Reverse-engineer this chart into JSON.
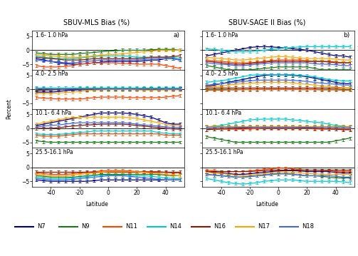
{
  "title_left": "SBUV-MLS Bias (%)",
  "title_right": "SBUV-SAGE II Bias (%)",
  "label_a": "a)",
  "label_b": "b)",
  "ylabel": "Percent",
  "xlabel": "Latitude",
  "latitudes": [
    -50,
    -45,
    -40,
    -35,
    -30,
    -25,
    -20,
    -15,
    -10,
    -5,
    0,
    5,
    10,
    15,
    20,
    25,
    30,
    35,
    40,
    45,
    50
  ],
  "layer_labels": [
    "1.6- 1.0 hPa",
    "4.0- 2.5 hPa",
    "10.1- 6.4 hPa",
    "25.5-16.1 hPa"
  ],
  "instruments": [
    "N7",
    "N9",
    "N11",
    "N14",
    "N16",
    "N17",
    "N18"
  ],
  "colors": [
    "#00008B",
    "#1a7a1a",
    "#FF4500",
    "#00CCCC",
    "#8B1a00",
    "#FFA500",
    "#4169E1"
  ],
  "ylim": [
    -7,
    7
  ],
  "yticks": [
    -5,
    0,
    5
  ],
  "xticks": [
    -40,
    -20,
    0,
    20,
    40
  ],
  "mls_data": {
    "1.6-1.0": {
      "N7": [
        -3.0,
        -3.5,
        -4.0,
        -4.5,
        -4.8,
        -5.0,
        -5.0,
        -4.8,
        -4.5,
        -4.3,
        -4.0,
        -4.0,
        -4.0,
        -4.0,
        -4.0,
        -3.8,
        -3.5,
        -3.5,
        -3.0,
        -3.0,
        -3.5
      ],
      "N9": [
        -1.0,
        -1.2,
        -1.5,
        -1.5,
        -1.5,
        -1.5,
        -1.2,
        -1.0,
        -0.8,
        -0.5,
        -0.3,
        -0.2,
        -0.0,
        0.0,
        0.0,
        0.0,
        0.2,
        0.3,
        0.3,
        0.3,
        0.0
      ],
      "N11": [
        -5.5,
        -6.0,
        -6.0,
        -6.0,
        -5.8,
        -5.5,
        -5.0,
        -4.8,
        -4.5,
        -4.5,
        -4.5,
        -4.5,
        -4.8,
        -4.8,
        -5.0,
        -5.0,
        -5.0,
        -5.0,
        -5.5,
        -6.0,
        -6.5
      ],
      "N14": [
        -2.0,
        -2.5,
        -2.8,
        -3.0,
        -3.0,
        -3.0,
        -2.8,
        -2.5,
        -2.3,
        -2.0,
        -2.0,
        -2.0,
        -2.0,
        -2.2,
        -2.5,
        -2.5,
        -2.5,
        -2.5,
        -2.5,
        -2.5,
        -3.0
      ],
      "N16": [
        -2.5,
        -2.8,
        -3.0,
        -3.2,
        -3.5,
        -3.5,
        -3.5,
        -3.3,
        -3.0,
        -3.0,
        -3.0,
        -3.0,
        -3.0,
        -3.0,
        -3.0,
        -2.8,
        -2.5,
        -2.5,
        -2.5,
        -2.3,
        -2.0
      ],
      "N17": [
        -1.5,
        -1.8,
        -2.0,
        -2.2,
        -2.5,
        -2.5,
        -2.5,
        -2.3,
        -2.0,
        -1.8,
        -1.5,
        -1.5,
        -1.3,
        -1.0,
        -0.8,
        -0.5,
        -0.3,
        0.0,
        0.0,
        0.0,
        0.0
      ],
      "N18": [
        -3.5,
        -3.8,
        -4.0,
        -4.2,
        -4.5,
        -4.5,
        -4.3,
        -4.0,
        -3.8,
        -3.5,
        -3.5,
        -3.5,
        -3.5,
        -3.5,
        -3.5,
        -3.3,
        -3.0,
        -3.0,
        -3.0,
        -3.0,
        -3.5
      ]
    },
    "4.0-2.5": {
      "N7": [
        -1.0,
        -1.0,
        -1.0,
        -0.8,
        -0.5,
        -0.3,
        -0.2,
        -0.1,
        0.0,
        0.1,
        0.1,
        0.1,
        0.1,
        0.1,
        0.1,
        0.2,
        0.2,
        0.2,
        0.3,
        0.3,
        0.3
      ],
      "N9": [
        -0.5,
        -0.3,
        -0.2,
        -0.1,
        0.0,
        0.1,
        0.2,
        0.3,
        0.3,
        0.3,
        0.3,
        0.3,
        0.3,
        0.3,
        0.2,
        0.2,
        0.2,
        0.1,
        0.1,
        0.1,
        0.1
      ],
      "N11": [
        -3.0,
        -3.2,
        -3.3,
        -3.5,
        -3.5,
        -3.5,
        -3.5,
        -3.3,
        -3.0,
        -2.8,
        -2.8,
        -2.8,
        -2.8,
        -3.0,
        -3.0,
        -3.0,
        -3.0,
        -3.0,
        -2.8,
        -2.5,
        -2.3
      ],
      "N14": [
        0.5,
        0.5,
        0.5,
        0.5,
        0.5,
        0.5,
        0.5,
        0.5,
        0.5,
        0.5,
        0.5,
        0.5,
        0.5,
        0.5,
        0.5,
        0.5,
        0.5,
        0.5,
        0.5,
        0.5,
        0.5
      ],
      "N16": [
        -0.3,
        -0.2,
        -0.2,
        -0.1,
        0.0,
        0.0,
        0.0,
        0.0,
        0.1,
        0.1,
        0.1,
        0.1,
        0.1,
        0.0,
        0.0,
        0.0,
        0.0,
        0.0,
        0.0,
        0.0,
        0.0
      ],
      "N17": [
        -1.5,
        -1.5,
        -1.5,
        -1.3,
        -1.2,
        -1.0,
        -0.8,
        -0.5,
        -0.3,
        -0.2,
        -0.1,
        -0.1,
        -0.1,
        -0.1,
        -0.2,
        -0.3,
        -0.3,
        -0.3,
        -0.2,
        -0.2,
        -0.2
      ],
      "N18": [
        0.2,
        0.2,
        0.1,
        0.1,
        0.1,
        0.1,
        0.1,
        0.1,
        0.1,
        0.1,
        0.1,
        0.1,
        0.1,
        0.1,
        0.1,
        0.1,
        0.1,
        0.1,
        0.1,
        0.1,
        0.1
      ]
    },
    "10.1-6.4": {
      "N7": [
        1.0,
        1.5,
        2.0,
        2.5,
        3.0,
        3.5,
        4.0,
        4.5,
        5.0,
        5.5,
        5.5,
        5.5,
        5.5,
        5.3,
        5.0,
        4.5,
        4.0,
        3.0,
        2.0,
        1.5,
        1.5
      ],
      "N9": [
        -4.5,
        -4.8,
        -5.0,
        -5.0,
        -5.0,
        -5.0,
        -5.0,
        -5.0,
        -5.0,
        -5.0,
        -5.0,
        -5.0,
        -5.0,
        -5.0,
        -5.0,
        -5.0,
        -5.0,
        -5.0,
        -5.0,
        -5.0,
        -5.0
      ],
      "N11": [
        -2.5,
        -2.8,
        -2.8,
        -2.8,
        -2.5,
        -2.3,
        -2.0,
        -2.0,
        -2.0,
        -2.0,
        -2.0,
        -2.0,
        -2.0,
        -2.0,
        -2.0,
        -2.0,
        -2.0,
        -2.0,
        -2.5,
        -2.5,
        -2.5
      ],
      "N14": [
        -2.0,
        -2.2,
        -2.2,
        -2.2,
        -2.0,
        -1.8,
        -1.5,
        -1.3,
        -1.0,
        -1.0,
        -1.0,
        -1.0,
        -1.0,
        -1.0,
        -1.0,
        -1.0,
        -1.0,
        -1.5,
        -1.8,
        -2.0,
        -2.0
      ],
      "N16": [
        0.0,
        0.0,
        0.0,
        0.2,
        0.5,
        0.8,
        1.0,
        1.2,
        1.3,
        1.5,
        1.5,
        1.5,
        1.5,
        1.3,
        1.0,
        0.8,
        0.5,
        0.3,
        0.0,
        -0.2,
        -0.3
      ],
      "N17": [
        1.5,
        2.0,
        2.5,
        3.0,
        3.5,
        3.8,
        4.0,
        4.0,
        4.0,
        4.0,
        4.0,
        4.0,
        4.0,
        3.8,
        3.5,
        3.0,
        2.5,
        2.0,
        1.5,
        1.0,
        1.0
      ],
      "N18": [
        0.5,
        0.8,
        1.0,
        1.2,
        1.5,
        1.8,
        2.0,
        2.0,
        2.0,
        2.0,
        2.0,
        2.0,
        2.0,
        1.8,
        1.5,
        1.2,
        1.0,
        0.8,
        0.5,
        0.3,
        0.3
      ]
    },
    "25.5-16.1": {
      "N7": [
        -4.5,
        -4.8,
        -5.0,
        -5.0,
        -5.0,
        -5.0,
        -5.0,
        -5.0,
        -4.8,
        -4.5,
        -4.5,
        -4.5,
        -4.5,
        -4.5,
        -4.5,
        -4.5,
        -4.5,
        -4.5,
        -4.5,
        -4.5,
        -4.5
      ],
      "N9": [
        -3.0,
        -3.2,
        -3.5,
        -3.5,
        -3.5,
        -3.5,
        -3.3,
        -3.0,
        -2.8,
        -2.5,
        -2.5,
        -2.5,
        -2.5,
        -2.5,
        -2.5,
        -2.5,
        -2.5,
        -2.5,
        -2.8,
        -3.0,
        -3.0
      ],
      "N11": [
        -2.0,
        -2.2,
        -2.5,
        -2.5,
        -2.5,
        -2.3,
        -2.0,
        -1.8,
        -1.5,
        -1.3,
        -1.2,
        -1.2,
        -1.2,
        -1.3,
        -1.5,
        -1.5,
        -1.5,
        -1.5,
        -1.8,
        -2.0,
        -2.0
      ],
      "N14": [
        -3.5,
        -3.8,
        -4.0,
        -4.0,
        -4.0,
        -3.8,
        -3.5,
        -3.3,
        -3.0,
        -2.8,
        -2.8,
        -2.8,
        -2.8,
        -3.0,
        -3.0,
        -3.0,
        -3.2,
        -3.5,
        -3.8,
        -4.0,
        -4.0
      ],
      "N16": [
        -1.5,
        -1.5,
        -1.5,
        -1.5,
        -1.5,
        -1.5,
        -1.5,
        -1.5,
        -1.5,
        -1.5,
        -1.5,
        -1.5,
        -1.5,
        -1.5,
        -1.5,
        -1.5,
        -1.5,
        -1.5,
        -1.5,
        -1.5,
        -1.5
      ],
      "N17": [
        -2.5,
        -2.8,
        -3.0,
        -3.0,
        -3.0,
        -2.8,
        -2.5,
        -2.3,
        -2.0,
        -1.8,
        -1.5,
        -1.5,
        -1.5,
        -1.5,
        -1.5,
        -1.8,
        -2.0,
        -2.2,
        -2.5,
        -2.8,
        -3.0
      ],
      "N18": [
        -4.0,
        -4.2,
        -4.5,
        -4.5,
        -4.5,
        -4.3,
        -4.0,
        -3.8,
        -3.5,
        -3.3,
        -3.0,
        -3.0,
        -3.0,
        -3.2,
        -3.5,
        -3.8,
        -4.0,
        -4.3,
        -4.5,
        -4.5,
        -4.5
      ]
    }
  },
  "sage_data": {
    "1.6-1.0": {
      "N7": [
        -2.0,
        -1.5,
        -1.0,
        -0.5,
        0.0,
        0.5,
        1.0,
        1.2,
        1.3,
        1.2,
        1.0,
        0.8,
        0.5,
        0.3,
        0.0,
        -0.5,
        -1.0,
        -1.5,
        -2.0,
        -2.0,
        -2.5
      ],
      "N9": [
        -5.5,
        -6.0,
        -6.5,
        -7.0,
        -7.0,
        -7.0,
        -7.0,
        -6.8,
        -6.5,
        -6.3,
        -6.0,
        -6.0,
        -6.0,
        -6.0,
        -6.0,
        -6.5,
        -7.0,
        -7.0,
        -7.0,
        -7.0,
        -7.0
      ],
      "N11": [
        -3.5,
        -3.8,
        -4.0,
        -4.2,
        -4.5,
        -4.5,
        -4.5,
        -4.3,
        -4.0,
        -3.8,
        -3.5,
        -3.5,
        -3.5,
        -3.5,
        -3.8,
        -4.0,
        -4.0,
        -4.0,
        -4.2,
        -4.5,
        -4.5
      ],
      "N14": [
        0.5,
        0.3,
        0.0,
        -0.3,
        -0.5,
        -0.5,
        -0.5,
        -0.3,
        0.0,
        0.3,
        0.5,
        0.8,
        1.0,
        1.2,
        1.3,
        1.3,
        1.3,
        1.3,
        1.3,
        1.3,
        1.3
      ],
      "N16": [
        -4.0,
        -4.2,
        -4.5,
        -4.8,
        -5.0,
        -5.0,
        -4.8,
        -4.5,
        -4.3,
        -4.0,
        -4.0,
        -4.0,
        -4.0,
        -4.0,
        -4.0,
        -4.0,
        -4.0,
        -4.2,
        -4.5,
        -4.5,
        -4.5
      ],
      "N17": [
        -2.5,
        -2.8,
        -3.0,
        -3.2,
        -3.5,
        -3.5,
        -3.3,
        -3.0,
        -2.8,
        -2.5,
        -2.3,
        -2.3,
        -2.5,
        -2.8,
        -3.0,
        -3.0,
        -3.0,
        -3.0,
        -3.2,
        -3.5,
        -3.5
      ],
      "N18": [
        -4.5,
        -4.8,
        -5.0,
        -5.2,
        -5.5,
        -5.5,
        -5.3,
        -5.0,
        -4.8,
        -4.5,
        -4.5,
        -4.5,
        -4.5,
        -4.5,
        -4.5,
        -4.8,
        -5.0,
        -5.0,
        -5.2,
        -5.5,
        -5.5
      ]
    },
    "4.0-2.5": {
      "N7": [
        1.0,
        1.5,
        2.0,
        2.5,
        3.0,
        3.5,
        4.0,
        4.5,
        5.0,
        5.2,
        5.2,
        5.2,
        5.0,
        4.8,
        4.5,
        4.0,
        3.5,
        3.0,
        2.5,
        2.0,
        2.0
      ],
      "N9": [
        0.0,
        0.0,
        0.0,
        0.0,
        0.0,
        0.0,
        0.0,
        0.0,
        0.0,
        0.0,
        0.0,
        0.0,
        0.0,
        0.0,
        0.0,
        0.0,
        0.0,
        0.0,
        0.0,
        0.0,
        0.0
      ],
      "N11": [
        -0.3,
        -0.3,
        -0.3,
        -0.2,
        -0.2,
        -0.1,
        -0.1,
        -0.1,
        0.0,
        0.0,
        0.0,
        0.0,
        0.0,
        -0.1,
        -0.1,
        -0.1,
        -0.2,
        -0.2,
        -0.2,
        -0.3,
        -0.3
      ],
      "N14": [
        2.5,
        2.8,
        3.0,
        3.5,
        4.0,
        4.5,
        5.0,
        5.2,
        5.3,
        5.3,
        5.3,
        5.3,
        5.2,
        5.0,
        4.8,
        4.5,
        4.0,
        3.5,
        3.2,
        3.0,
        3.0
      ],
      "N16": [
        0.5,
        0.5,
        0.5,
        0.5,
        0.5,
        0.5,
        0.5,
        0.5,
        0.5,
        0.5,
        0.5,
        0.5,
        0.5,
        0.5,
        0.5,
        0.5,
        0.5,
        0.5,
        0.5,
        0.5,
        0.5
      ],
      "N17": [
        0.8,
        1.0,
        1.2,
        1.5,
        1.8,
        2.0,
        2.2,
        2.3,
        2.5,
        2.5,
        2.5,
        2.5,
        2.3,
        2.0,
        1.8,
        1.5,
        1.2,
        1.0,
        0.8,
        0.5,
        0.5
      ],
      "N18": [
        1.5,
        1.8,
        2.0,
        2.3,
        2.5,
        2.8,
        3.0,
        3.2,
        3.3,
        3.3,
        3.3,
        3.3,
        3.2,
        3.0,
        2.8,
        2.5,
        2.2,
        2.0,
        1.8,
        1.5,
        1.5
      ]
    },
    "10.1-6.4": {
      "N7": [
        0.5,
        0.5,
        0.5,
        0.5,
        0.5,
        0.5,
        0.5,
        0.5,
        0.5,
        0.5,
        0.5,
        0.5,
        0.5,
        0.5,
        0.5,
        0.5,
        0.5,
        0.5,
        0.5,
        0.5,
        0.5
      ],
      "N9": [
        -3.0,
        -3.5,
        -4.0,
        -4.5,
        -5.0,
        -5.0,
        -5.0,
        -5.0,
        -5.0,
        -5.0,
        -5.0,
        -5.0,
        -5.0,
        -5.0,
        -5.0,
        -5.0,
        -5.0,
        -5.0,
        -4.5,
        -4.0,
        -3.5
      ],
      "N11": [
        -0.5,
        -0.3,
        -0.3,
        -0.3,
        -0.3,
        -0.3,
        -0.2,
        -0.1,
        0.0,
        0.0,
        0.0,
        0.0,
        0.0,
        0.0,
        -0.1,
        -0.2,
        -0.3,
        -0.3,
        -0.3,
        -0.3,
        -0.3
      ],
      "N14": [
        0.5,
        0.8,
        1.0,
        1.5,
        2.0,
        2.5,
        3.0,
        3.2,
        3.3,
        3.3,
        3.3,
        3.3,
        3.0,
        2.8,
        2.5,
        2.2,
        2.0,
        1.5,
        1.0,
        0.8,
        0.5
      ],
      "N16": [
        -0.5,
        -0.3,
        -0.2,
        -0.1,
        0.0,
        0.1,
        0.2,
        0.3,
        0.3,
        0.3,
        0.3,
        0.3,
        0.3,
        0.2,
        0.1,
        0.0,
        -0.1,
        -0.2,
        -0.3,
        -0.5,
        -0.5
      ],
      "N17": [
        0.8,
        0.8,
        0.8,
        0.8,
        0.8,
        0.8,
        0.8,
        0.8,
        0.8,
        0.8,
        0.8,
        0.8,
        0.8,
        0.8,
        0.8,
        0.8,
        0.8,
        0.8,
        0.8,
        0.8,
        0.8
      ],
      "N18": [
        0.5,
        0.5,
        0.5,
        0.5,
        0.5,
        0.5,
        0.5,
        0.5,
        0.5,
        0.5,
        0.5,
        0.5,
        0.5,
        0.5,
        0.5,
        0.5,
        0.5,
        0.5,
        0.5,
        0.5,
        0.5
      ]
    },
    "25.5-16.1": {
      "N7": [
        -1.5,
        -1.8,
        -2.0,
        -2.2,
        -2.5,
        -2.5,
        -2.3,
        -2.0,
        -1.8,
        -1.5,
        -1.3,
        -1.2,
        -1.2,
        -1.3,
        -1.5,
        -1.5,
        -1.5,
        -1.5,
        -1.8,
        -2.0,
        -2.0
      ],
      "N9": [
        -2.5,
        -2.8,
        -3.0,
        -3.2,
        -3.5,
        -3.5,
        -3.3,
        -3.0,
        -2.8,
        -2.5,
        -2.3,
        -2.3,
        -2.5,
        -2.8,
        -3.0,
        -3.0,
        -3.2,
        -3.5,
        -3.8,
        -3.8,
        -3.8
      ],
      "N11": [
        -1.0,
        -1.2,
        -1.5,
        -1.5,
        -1.5,
        -1.5,
        -1.3,
        -1.0,
        -0.8,
        -0.5,
        -0.3,
        -0.3,
        -0.5,
        -0.8,
        -1.0,
        -1.0,
        -1.0,
        -1.2,
        -1.5,
        -1.5,
        -1.5
      ],
      "N14": [
        -4.0,
        -4.5,
        -5.0,
        -5.5,
        -5.8,
        -6.0,
        -5.8,
        -5.5,
        -5.0,
        -4.8,
        -4.5,
        -4.5,
        -4.5,
        -4.8,
        -5.0,
        -5.0,
        -5.0,
        -5.0,
        -5.0,
        -5.2,
        -5.5
      ],
      "N16": [
        -1.5,
        -1.5,
        -1.5,
        -1.5,
        -1.5,
        -1.5,
        -1.5,
        -1.3,
        -1.2,
        -1.0,
        -1.0,
        -1.0,
        -1.0,
        -1.0,
        -1.0,
        -1.0,
        -1.0,
        -1.0,
        -1.0,
        -1.0,
        -1.0
      ],
      "N17": [
        -1.8,
        -2.0,
        -2.2,
        -2.5,
        -2.8,
        -3.0,
        -2.8,
        -2.5,
        -2.3,
        -2.0,
        -1.8,
        -1.8,
        -2.0,
        -2.0,
        -2.2,
        -2.3,
        -2.5,
        -2.5,
        -2.5,
        -2.5,
        -2.5
      ],
      "N18": [
        -2.5,
        -2.8,
        -3.0,
        -3.2,
        -3.5,
        -3.5,
        -3.3,
        -3.0,
        -2.8,
        -2.5,
        -2.3,
        -2.3,
        -2.5,
        -2.8,
        -3.0,
        -3.0,
        -3.0,
        -3.0,
        -3.2,
        -3.5,
        -3.5
      ]
    }
  },
  "error_bar_size": 0.5,
  "linewidth": 0.9,
  "capsize": 1.5,
  "background_color": "#ffffff"
}
